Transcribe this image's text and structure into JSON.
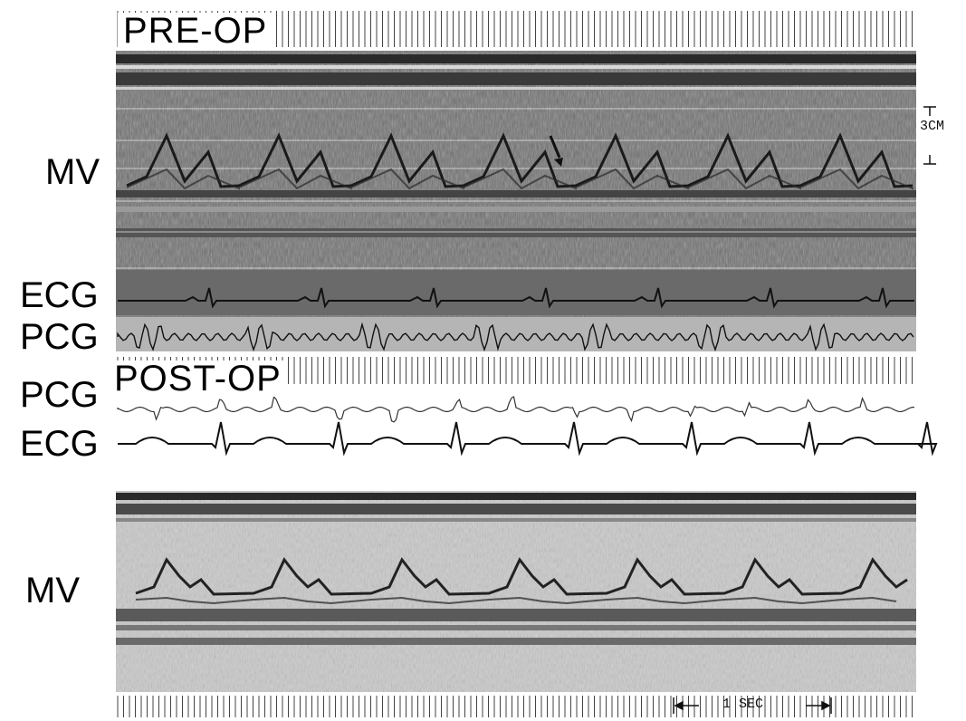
{
  "pre_op": {
    "title": "PRE-OP",
    "labels": {
      "mv": "MV",
      "ecg": "ECG",
      "pcg": "PCG"
    }
  },
  "post_op": {
    "title": "POST-OP",
    "labels": {
      "pcg": "PCG",
      "ecg": "ECG",
      "mv": "MV"
    }
  },
  "scale": {
    "depth": "3CM",
    "time": "1 SEC"
  }
}
